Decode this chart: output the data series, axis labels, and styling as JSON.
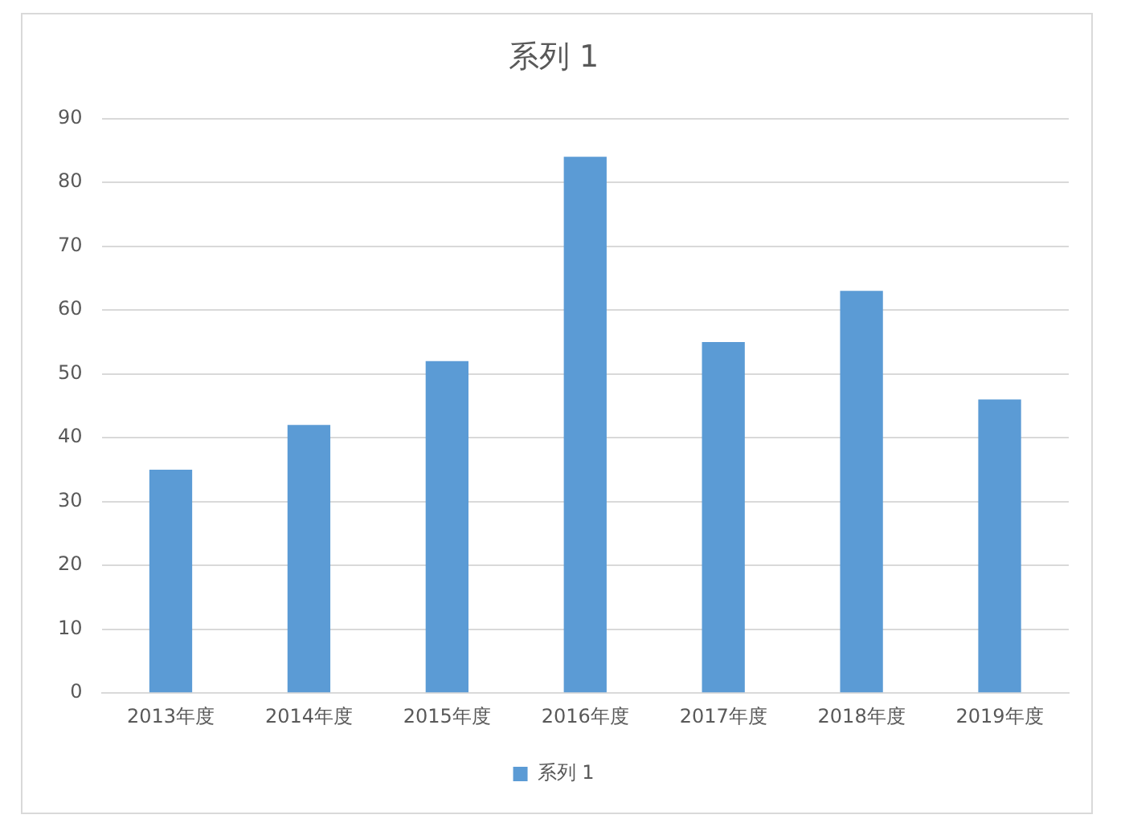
{
  "chart_data": {
    "type": "bar",
    "title": "系列 1",
    "categories": [
      "2013年度",
      "2014年度",
      "2015年度",
      "2016年度",
      "2017年度",
      "2018年度",
      "2019年度"
    ],
    "series": [
      {
        "name": "系列 1",
        "color": "#5b9bd5",
        "values": [
          35,
          42,
          52,
          84,
          55,
          63,
          46
        ]
      }
    ],
    "ylim": [
      0,
      90
    ],
    "yticks": [
      0,
      10,
      20,
      30,
      40,
      50,
      60,
      70,
      80,
      90
    ],
    "grid": "y",
    "legend": "bottom"
  }
}
